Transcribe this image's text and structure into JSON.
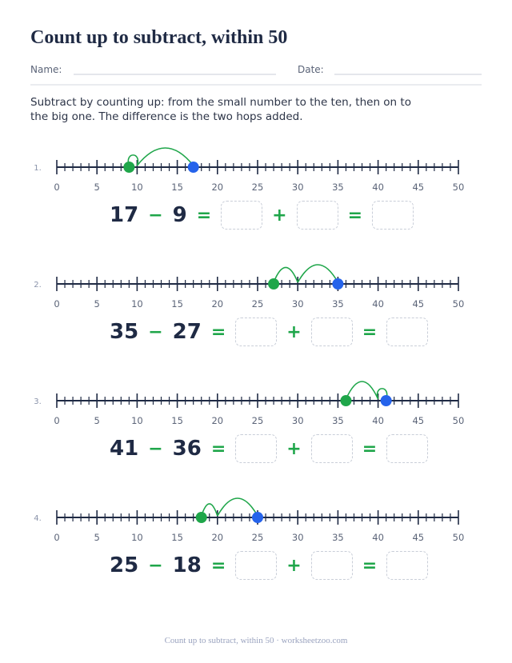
{
  "header": {
    "title": "Count up to subtract, within 50",
    "name_label": "Name:",
    "date_label": "Date:"
  },
  "instructions": "Subtract by counting up: from the small number to the ten, then on to the big one. The difference is the two hops added.",
  "number_line": {
    "labels": [
      0,
      5,
      10,
      15,
      20,
      25,
      30,
      35,
      40,
      45,
      50
    ]
  },
  "operators": {
    "minus": "−",
    "equals": "=",
    "plus": "+"
  },
  "problems": [
    {
      "index": "1.",
      "minuend": 17,
      "subtrahend": 9
    },
    {
      "index": "2.",
      "minuend": 35,
      "subtrahend": 27
    },
    {
      "index": "3.",
      "minuend": 41,
      "subtrahend": 36
    },
    {
      "index": "4.",
      "minuend": 25,
      "subtrahend": 18
    }
  ],
  "footer": "Count up to subtract, within 50 · worksheetzoo.com"
}
